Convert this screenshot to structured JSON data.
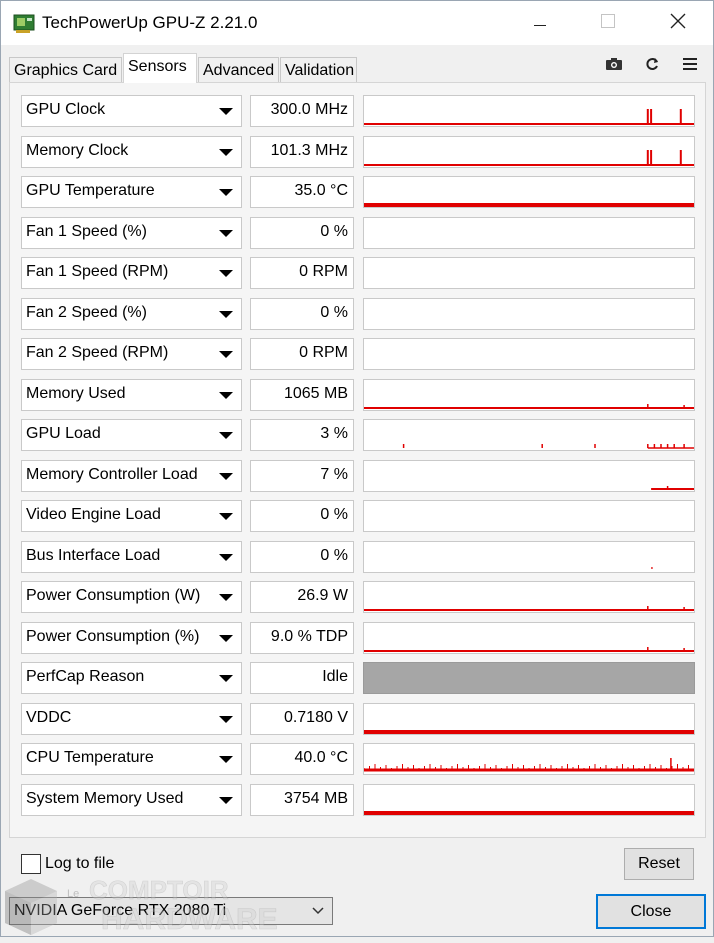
{
  "window": {
    "title": "TechPowerUp GPU-Z 2.21.0",
    "icons": {
      "app": "gpu-card-icon",
      "minimize": "minimize-icon",
      "maximize": "maximize-icon",
      "close": "close-icon"
    }
  },
  "tabs": [
    {
      "label": "Graphics Card",
      "active": false
    },
    {
      "label": "Sensors",
      "active": true
    },
    {
      "label": "Advanced",
      "active": false
    },
    {
      "label": "Validation",
      "active": false
    }
  ],
  "toolbar": {
    "screenshot_icon": "camera-icon",
    "refresh_icon": "refresh-icon",
    "menu_icon": "hamburger-menu-icon"
  },
  "colors": {
    "graph_line": "#e00000",
    "status_fill": "#a6a6a6",
    "close_border": "#0078d7"
  },
  "sensors": [
    {
      "name": "GPU Clock",
      "value": "300.0 MHz",
      "graph": "spike",
      "level": 0.0,
      "spikes": [
        0.86,
        0.87,
        0.96
      ]
    },
    {
      "name": "Memory Clock",
      "value": "101.3 MHz",
      "graph": "spike",
      "level": 0.0,
      "spikes": [
        0.86,
        0.87,
        0.96
      ]
    },
    {
      "name": "GPU Temperature",
      "value": "35.0 °C",
      "graph": "flat",
      "level": 0.1
    },
    {
      "name": "Fan 1 Speed (%)",
      "value": "0 %",
      "graph": "none",
      "level": 0
    },
    {
      "name": "Fan 1 Speed (RPM)",
      "value": "0 RPM",
      "graph": "none",
      "level": 0
    },
    {
      "name": "Fan 2 Speed (%)",
      "value": "0 %",
      "graph": "none",
      "level": 0
    },
    {
      "name": "Fan 2 Speed (RPM)",
      "value": "0 RPM",
      "graph": "none",
      "level": 0
    },
    {
      "name": "Memory Used",
      "value": "1065 MB",
      "graph": "low",
      "level": 0.03
    },
    {
      "name": "GPU Load",
      "value": "3 %",
      "graph": "noise",
      "level": 0.03
    },
    {
      "name": "Memory Controller Load",
      "value": "7 %",
      "graph": "tail",
      "level": 0.07
    },
    {
      "name": "Video Engine Load",
      "value": "0 %",
      "graph": "none",
      "level": 0
    },
    {
      "name": "Bus Interface Load",
      "value": "0 %",
      "graph": "dot",
      "level": 0
    },
    {
      "name": "Power Consumption (W)",
      "value": "26.9 W",
      "graph": "low",
      "level": 0.03
    },
    {
      "name": "Power Consumption (%)",
      "value": "9.0 % TDP",
      "graph": "low",
      "level": 0.03
    },
    {
      "name": "PerfCap Reason",
      "value": "Idle",
      "graph": "status",
      "level": 1
    },
    {
      "name": "VDDC",
      "value": "0.7180 V",
      "graph": "flat",
      "level": 0.15
    },
    {
      "name": "CPU Temperature",
      "value": "40.0 °C",
      "graph": "busy",
      "level": 0.2
    },
    {
      "name": "System Memory Used",
      "value": "3754 MB",
      "graph": "flat",
      "level": 0.15
    }
  ],
  "footer": {
    "log_label": "Log to file",
    "log_checked": false,
    "reset_label": "Reset",
    "gpu_selected": "NVIDIA GeForce RTX 2080 Ti",
    "close_label": "Close",
    "dropdown_icon": "chevron-down-icon"
  },
  "watermark": {
    "line1": "Le",
    "line2": "COMPTOIR",
    "line3": "HARDWARE"
  }
}
